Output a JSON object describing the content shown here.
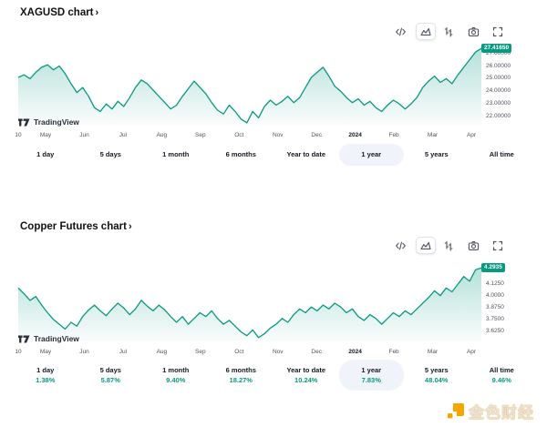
{
  "ui": {
    "chevron": "›",
    "attribution": "TradingView",
    "watermark": "金色财经",
    "toolbar_icons": [
      "embed-code-icon",
      "area-chart-icon",
      "bar-chart-icon",
      "camera-icon",
      "fullscreen-icon"
    ]
  },
  "chart_data": [
    {
      "type": "area",
      "title": "XAGUSD chart",
      "series_name": "XAGUSD",
      "line_color": "#089981",
      "x_range": [
        "Apr 10 2023",
        "Apr 2024"
      ],
      "x_ticks": [
        "10",
        "May",
        "Jun",
        "Jul",
        "Aug",
        "Sep",
        "Oct",
        "Nov",
        "Dec",
        "2024",
        "Feb",
        "Mar",
        "Apr"
      ],
      "y_ticks": [
        "27.00000",
        "26.00000",
        "25.00000",
        "24.00000",
        "23.00000",
        "22.00000"
      ],
      "y_tick_values": [
        27,
        26,
        25,
        24,
        23,
        22
      ],
      "ylim": [
        21.35,
        27.55
      ],
      "last_price": "27.41650",
      "last_value": 27.4165,
      "grid": false,
      "legend": "none",
      "values": [
        25.1,
        25.3,
        25.0,
        25.5,
        25.9,
        26.1,
        25.7,
        26.0,
        25.4,
        24.6,
        23.9,
        24.3,
        23.6,
        22.7,
        22.4,
        23.0,
        22.6,
        23.2,
        22.8,
        23.5,
        24.3,
        24.9,
        24.6,
        24.1,
        23.6,
        23.1,
        22.6,
        22.9,
        23.6,
        24.2,
        24.8,
        24.3,
        23.8,
        23.1,
        22.5,
        22.2,
        22.9,
        22.4,
        21.8,
        21.5,
        22.4,
        21.9,
        22.8,
        23.3,
        22.9,
        23.2,
        23.6,
        23.1,
        23.5,
        24.3,
        25.1,
        25.5,
        25.9,
        25.2,
        24.4,
        24.0,
        23.5,
        23.1,
        23.4,
        22.9,
        23.2,
        22.7,
        22.4,
        22.9,
        23.3,
        23.0,
        22.6,
        23.0,
        23.5,
        24.3,
        24.8,
        25.2,
        24.7,
        25.0,
        24.6,
        25.3,
        25.9,
        26.5,
        27.1,
        27.4
      ],
      "ranges": [
        {
          "label": "1 day"
        },
        {
          "label": "5 days"
        },
        {
          "label": "1 month"
        },
        {
          "label": "6 months"
        },
        {
          "label": "Year to date"
        },
        {
          "label": "1 year",
          "selected": true
        },
        {
          "label": "5 years"
        },
        {
          "label": "All time"
        }
      ]
    },
    {
      "type": "area",
      "title": "Copper Futures chart",
      "series_name": "Copper Futures",
      "line_color": "#089981",
      "x_range": [
        "Apr 10 2023",
        "Apr 2024"
      ],
      "x_ticks": [
        "10",
        "May",
        "Jun",
        "Jul",
        "Aug",
        "Sep",
        "Oct",
        "Nov",
        "Dec",
        "2024",
        "Feb",
        "Mar",
        "Apr"
      ],
      "y_ticks": [
        "4.2500",
        "4.1250",
        "4.0000",
        "3.8750",
        "3.7500",
        "3.6250"
      ],
      "y_tick_values": [
        4.25,
        4.125,
        4.0,
        3.875,
        3.75,
        3.625
      ],
      "ylim": [
        3.52,
        4.34
      ],
      "last_price": "4.2935",
      "last_value": 4.2935,
      "grid": false,
      "legend": "none",
      "values": [
        4.08,
        4.02,
        3.95,
        3.99,
        3.9,
        3.82,
        3.75,
        3.7,
        3.65,
        3.72,
        3.68,
        3.78,
        3.85,
        3.9,
        3.84,
        3.79,
        3.86,
        3.92,
        3.87,
        3.8,
        3.86,
        3.95,
        3.89,
        3.84,
        3.9,
        3.85,
        3.78,
        3.72,
        3.78,
        3.7,
        3.76,
        3.82,
        3.78,
        3.84,
        3.76,
        3.7,
        3.74,
        3.68,
        3.62,
        3.58,
        3.64,
        3.56,
        3.6,
        3.66,
        3.7,
        3.76,
        3.72,
        3.8,
        3.86,
        3.82,
        3.88,
        3.84,
        3.9,
        3.86,
        3.92,
        3.88,
        3.82,
        3.86,
        3.78,
        3.74,
        3.8,
        3.76,
        3.7,
        3.76,
        3.82,
        3.78,
        3.84,
        3.8,
        3.86,
        3.92,
        3.98,
        4.05,
        4.0,
        4.08,
        4.04,
        4.12,
        4.2,
        4.15,
        4.27,
        4.29
      ],
      "ranges": [
        {
          "label": "1 day",
          "change": "1.38%"
        },
        {
          "label": "5 days",
          "change": "5.87%"
        },
        {
          "label": "1 month",
          "change": "9.40%"
        },
        {
          "label": "6 months",
          "change": "18.27%"
        },
        {
          "label": "Year to date",
          "change": "10.24%"
        },
        {
          "label": "1 year",
          "change": "7.83%",
          "selected": true
        },
        {
          "label": "5 years",
          "change": "48.04%"
        },
        {
          "label": "All time",
          "change": "9.46%"
        }
      ]
    }
  ]
}
